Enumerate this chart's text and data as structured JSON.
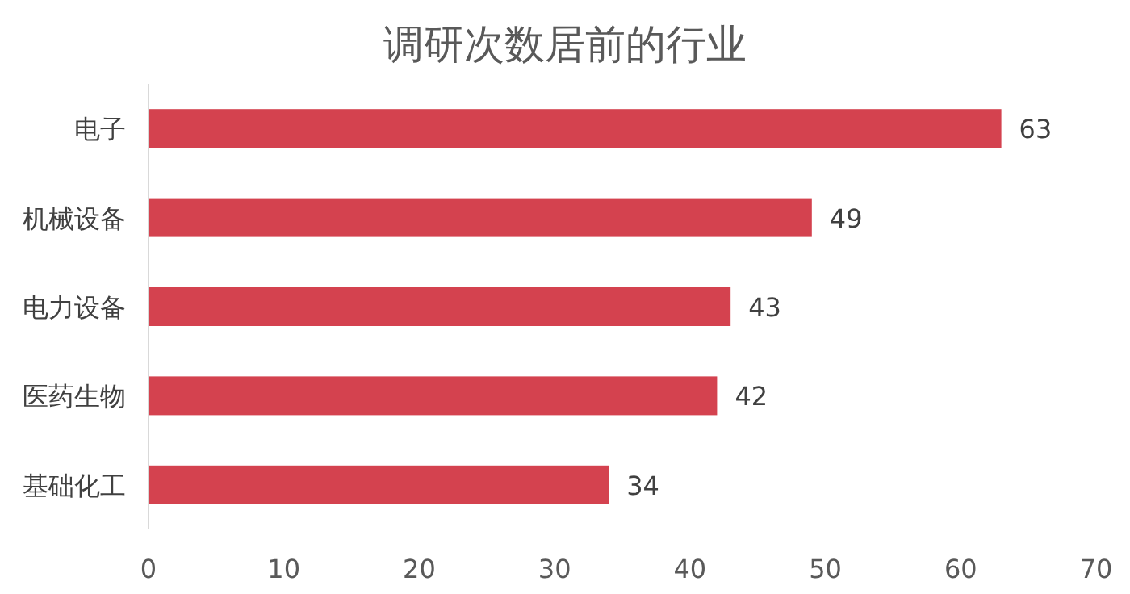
{
  "chart_data": {
    "type": "bar",
    "orientation": "horizontal",
    "title": "调研次数居前的行业",
    "categories": [
      "电子",
      "机械设备",
      "电力设备",
      "医药生物",
      "基础化工"
    ],
    "values": [
      63,
      49,
      43,
      42,
      34
    ],
    "color": "#d4424f",
    "xlim": [
      0,
      70
    ],
    "xticks": [
      0,
      10,
      20,
      30,
      40,
      50,
      60,
      70
    ],
    "data_labels": true
  }
}
